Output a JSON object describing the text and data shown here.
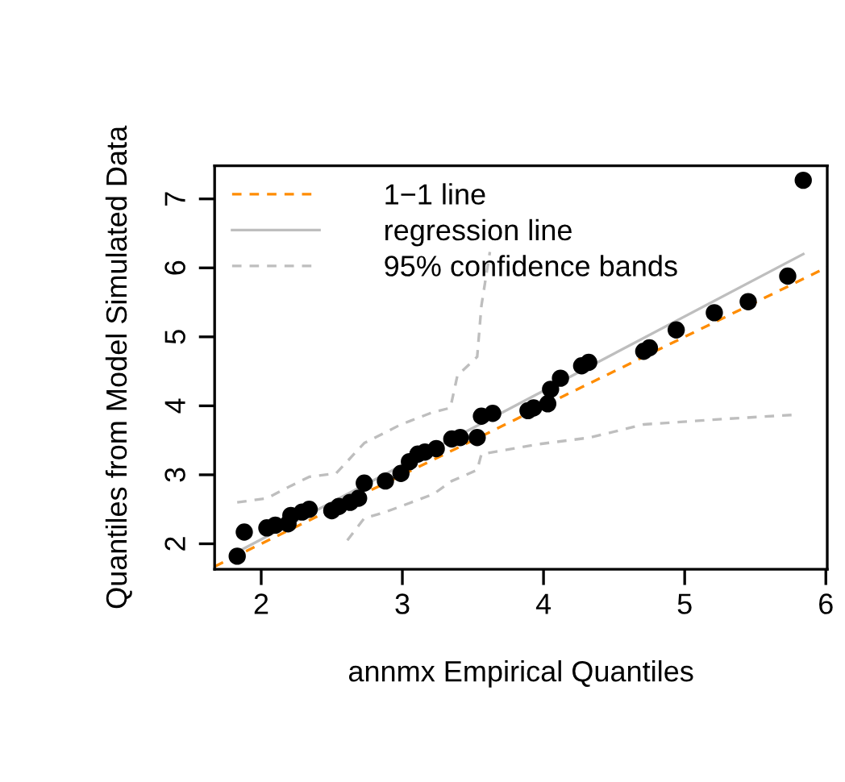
{
  "chart_data": {
    "type": "scatter",
    "xlabel": "annmx Empirical Quantiles",
    "ylabel": "Quantiles from Model Simulated Data",
    "xlim": [
      1.67,
      6.01
    ],
    "ylim": [
      1.63,
      7.48
    ],
    "xticks": [
      2,
      3,
      4,
      5,
      6
    ],
    "yticks": [
      2,
      3,
      4,
      5,
      6,
      7
    ],
    "grid": false,
    "legend": "top left",
    "series": [
      {
        "color": "#000000",
        "marker": "circle",
        "x": [
          1.83,
          1.88,
          2.04,
          2.1,
          2.19,
          2.21,
          2.29,
          2.34,
          2.5,
          2.55,
          2.63,
          2.69,
          2.73,
          2.88,
          2.99,
          3.05,
          3.11,
          3.16,
          3.24,
          3.35,
          3.41,
          3.53,
          3.56,
          3.64,
          3.89,
          3.93,
          4.03,
          4.05,
          4.12,
          4.27,
          4.32,
          4.71,
          4.75,
          4.94,
          5.21,
          5.45,
          5.73,
          5.84
        ],
        "values": [
          1.82,
          2.17,
          2.23,
          2.27,
          2.29,
          2.41,
          2.46,
          2.5,
          2.48,
          2.54,
          2.6,
          2.66,
          2.88,
          2.91,
          3.02,
          3.19,
          3.3,
          3.33,
          3.38,
          3.52,
          3.54,
          3.54,
          3.85,
          3.89,
          3.93,
          3.97,
          4.03,
          4.24,
          4.4,
          4.58,
          4.63,
          4.79,
          4.84,
          5.1,
          5.35,
          5.51,
          5.88,
          7.27
        ]
      },
      {
        "type": "line",
        "name": "1−1 line",
        "color": "#ff8c00",
        "line_style": "dashed",
        "x": [
          1.67,
          6.01
        ],
        "values": [
          1.67,
          6.01
        ]
      },
      {
        "type": "line",
        "name": "regression line",
        "color": "#bebebe",
        "line_style": "solid",
        "x": [
          1.83,
          5.84
        ],
        "values": [
          1.88,
          6.2
        ]
      },
      {
        "type": "line",
        "name": "95% confidence bands",
        "color": "#bebebe",
        "line_style": "dashed",
        "x": [
          1.83,
          2.04,
          2.21,
          2.34,
          2.53,
          2.73,
          2.99,
          3.22,
          3.34,
          3.39,
          3.53,
          3.56,
          3.62
        ],
        "values": [
          2.6,
          2.66,
          2.84,
          2.97,
          3.02,
          3.46,
          3.73,
          3.91,
          3.97,
          4.44,
          4.71,
          5.45,
          6.23
        ]
      },
      {
        "type": "line",
        "color": "#bebebe",
        "line_style": "dashed",
        "x": [
          2.61,
          2.73,
          2.88,
          3.22,
          3.35,
          3.53,
          3.56,
          3.95,
          4.33,
          4.71,
          5.28,
          5.78
        ],
        "values": [
          2.05,
          2.37,
          2.46,
          2.72,
          2.91,
          3.07,
          3.3,
          3.44,
          3.54,
          3.73,
          3.81,
          3.87
        ]
      }
    ]
  }
}
